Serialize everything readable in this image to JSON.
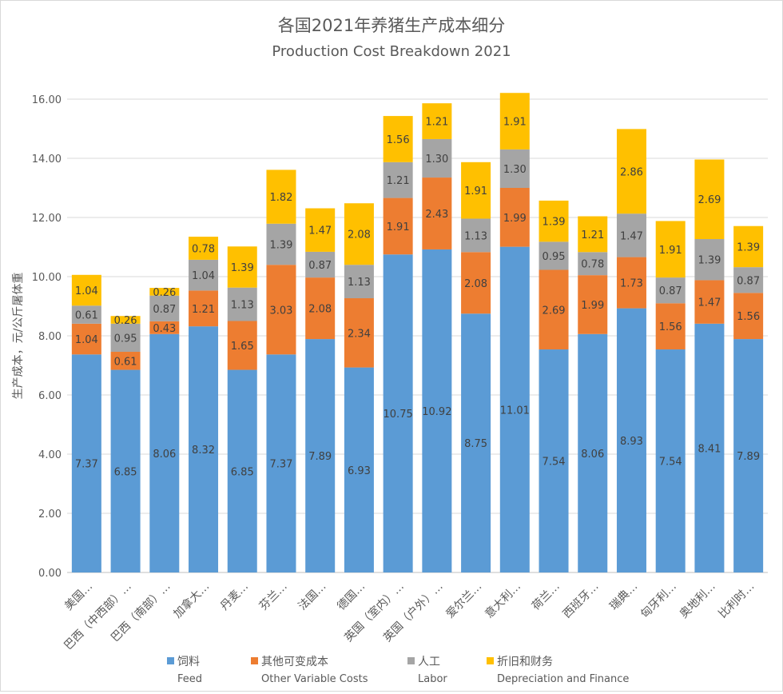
{
  "chart_data": {
    "type": "bar",
    "stacked": true,
    "title": "各国2021年养猪生产成本细分",
    "subtitle": "Production Cost Breakdown 2021",
    "ylabel": "生产成本，元/公斤屠体重",
    "ylim": [
      0,
      16
    ],
    "yticks": [
      "0.00",
      "2.00",
      "4.00",
      "6.00",
      "8.00",
      "10.00",
      "12.00",
      "14.00",
      "16.00"
    ],
    "grid": true,
    "legend_position": "bottom",
    "categories": [
      "美国…",
      "巴西（中西部）…",
      "巴西（南部）…",
      "加拿大…",
      "丹麦…",
      "芬兰…",
      "法国…",
      "德国…",
      "英国（室内）…",
      "英国（户外）…",
      "爱尔兰…",
      "意大利…",
      "荷兰…",
      "西班牙…",
      "瑞典…",
      "匈牙利…",
      "奥地利…",
      "比利时…"
    ],
    "series": [
      {
        "name": "饲料",
        "name_en": "Feed",
        "color": "#5b9bd5",
        "values": [
          7.37,
          6.85,
          8.06,
          8.32,
          6.85,
          7.37,
          7.89,
          6.93,
          10.75,
          10.92,
          8.75,
          11.01,
          7.54,
          8.06,
          8.93,
          7.54,
          8.41,
          7.89
        ]
      },
      {
        "name": "其他可变成本",
        "name_en": "Other Variable Costs",
        "color": "#ed7d31",
        "values": [
          1.04,
          0.61,
          0.43,
          1.21,
          1.65,
          3.03,
          2.08,
          2.34,
          1.91,
          2.43,
          2.08,
          1.99,
          2.69,
          1.99,
          1.73,
          1.56,
          1.47,
          1.56
        ]
      },
      {
        "name": "人工",
        "name_en": "Labor",
        "color": "#a5a5a5",
        "values": [
          0.61,
          0.95,
          0.87,
          1.04,
          1.13,
          1.39,
          0.87,
          1.13,
          1.21,
          1.3,
          1.13,
          1.3,
          0.95,
          0.78,
          1.47,
          0.87,
          1.39,
          0.87
        ]
      },
      {
        "name": "折旧和财务",
        "name_en": "Depreciation and Finance",
        "color": "#ffc000",
        "values": [
          1.04,
          0.26,
          0.26,
          0.78,
          1.39,
          1.82,
          1.47,
          2.08,
          1.56,
          1.21,
          1.91,
          1.91,
          1.39,
          1.21,
          2.86,
          1.91,
          2.69,
          1.39
        ]
      }
    ]
  }
}
